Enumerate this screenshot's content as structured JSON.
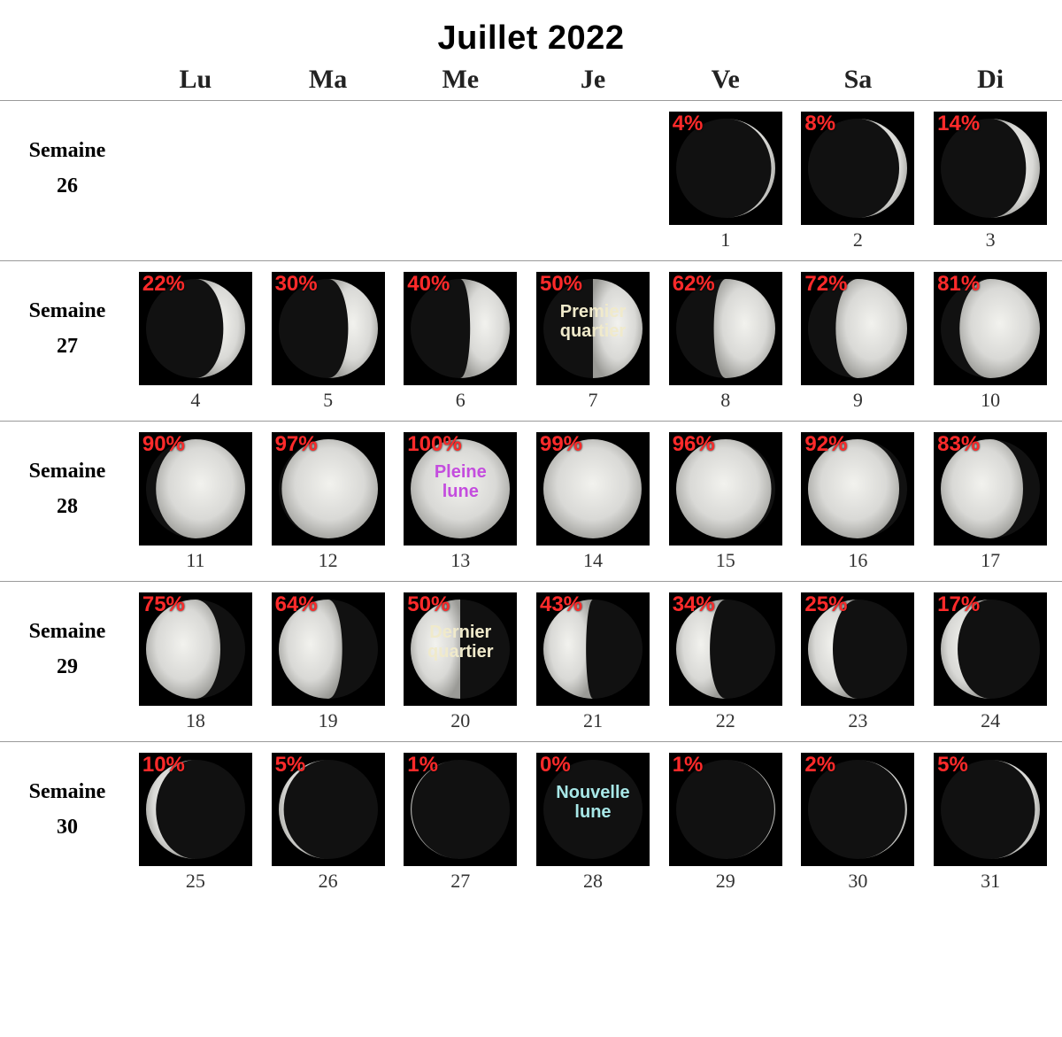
{
  "title": "Juillet 2022",
  "weekWord": "Semaine",
  "dayHeaders": [
    "Lu",
    "Ma",
    "Me",
    "Je",
    "Ve",
    "Sa",
    "Di"
  ],
  "percentColor": "#ff2a2a",
  "titleFontSize": 38,
  "headerFontSize": 30,
  "weekLabelFontSize": 24,
  "dayNumFontSize": 22,
  "moonBoxSize": 128,
  "background": "#ffffff",
  "moonBg": "#000000",
  "moonLit": "#d9d9d6",
  "moonShadow": "#111111",
  "gridLineColor": "#9a9a9a",
  "phaseLabelColors": {
    "Premier quartier": "#f0eacb",
    "Pleine lune": "#c44dde",
    "Dernier quartier": "#f0eacb",
    "Nouvelle lune": "#a8e8e8"
  },
  "weeks": [
    {
      "num": 26,
      "days": [
        null,
        null,
        null,
        null,
        {
          "date": 1,
          "pct": 4,
          "waxing": true
        },
        {
          "date": 2,
          "pct": 8,
          "waxing": true
        },
        {
          "date": 3,
          "pct": 14,
          "waxing": true
        }
      ]
    },
    {
      "num": 27,
      "days": [
        {
          "date": 4,
          "pct": 22,
          "waxing": true
        },
        {
          "date": 5,
          "pct": 30,
          "waxing": true
        },
        {
          "date": 6,
          "pct": 40,
          "waxing": true
        },
        {
          "date": 7,
          "pct": 50,
          "waxing": true,
          "label": "Premier\nquartier"
        },
        {
          "date": 8,
          "pct": 62,
          "waxing": true
        },
        {
          "date": 9,
          "pct": 72,
          "waxing": true
        },
        {
          "date": 10,
          "pct": 81,
          "waxing": true
        }
      ]
    },
    {
      "num": 28,
      "days": [
        {
          "date": 11,
          "pct": 90,
          "waxing": true
        },
        {
          "date": 12,
          "pct": 97,
          "waxing": true
        },
        {
          "date": 13,
          "pct": 100,
          "waxing": true,
          "label": "Pleine\nlune"
        },
        {
          "date": 14,
          "pct": 99,
          "waxing": false
        },
        {
          "date": 15,
          "pct": 96,
          "waxing": false
        },
        {
          "date": 16,
          "pct": 92,
          "waxing": false
        },
        {
          "date": 17,
          "pct": 83,
          "waxing": false
        }
      ]
    },
    {
      "num": 29,
      "days": [
        {
          "date": 18,
          "pct": 75,
          "waxing": false
        },
        {
          "date": 19,
          "pct": 64,
          "waxing": false
        },
        {
          "date": 20,
          "pct": 50,
          "waxing": false,
          "label": "Dernier\nquartier"
        },
        {
          "date": 21,
          "pct": 43,
          "waxing": false
        },
        {
          "date": 22,
          "pct": 34,
          "waxing": false
        },
        {
          "date": 23,
          "pct": 25,
          "waxing": false
        },
        {
          "date": 24,
          "pct": 17,
          "waxing": false
        }
      ]
    },
    {
      "num": 30,
      "days": [
        {
          "date": 25,
          "pct": 10,
          "waxing": false
        },
        {
          "date": 26,
          "pct": 5,
          "waxing": false
        },
        {
          "date": 27,
          "pct": 1,
          "waxing": false
        },
        {
          "date": 28,
          "pct": 0,
          "waxing": false,
          "label": "Nouvelle\nlune"
        },
        {
          "date": 29,
          "pct": 1,
          "waxing": true
        },
        {
          "date": 30,
          "pct": 2,
          "waxing": true
        },
        {
          "date": 31,
          "pct": 5,
          "waxing": true
        }
      ]
    }
  ]
}
